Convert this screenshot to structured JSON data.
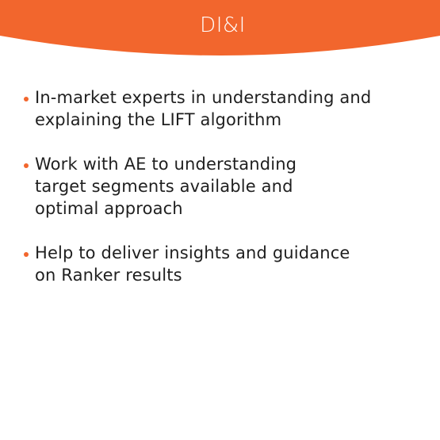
{
  "header": {
    "title": "DI&I",
    "accent_color": "#f2662d"
  },
  "bullets": [
    {
      "lines": [
        "In-market experts in understanding and",
        "explaining the LIFT algorithm"
      ]
    },
    {
      "lines": [
        "Work with AE to understanding",
        "target segments available and",
        "optimal approach"
      ]
    },
    {
      "lines": [
        "Help to deliver insights and guidance",
        "on Ranker results"
      ]
    }
  ]
}
